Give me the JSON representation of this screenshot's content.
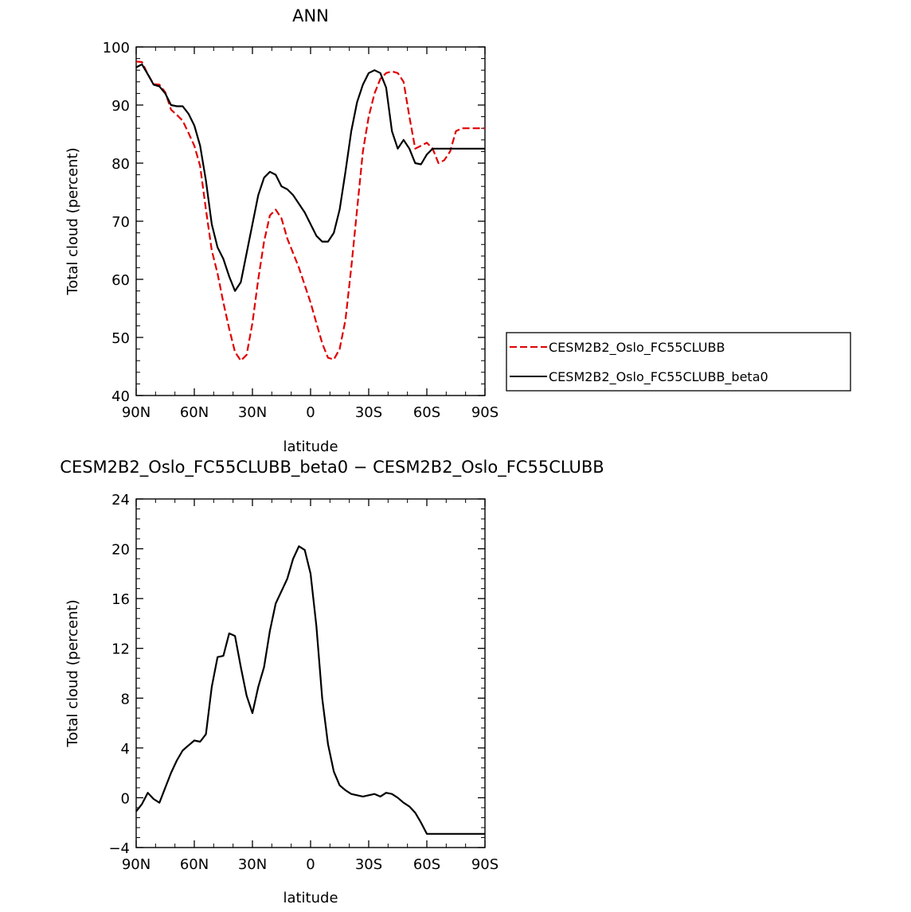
{
  "chart_data": [
    {
      "type": "line",
      "title": "ANN",
      "xlabel": "latitude",
      "ylabel": "Total cloud (percent)",
      "xlim": [
        90,
        -90
      ],
      "ylim": [
        40,
        100
      ],
      "x_ticks": [
        90,
        60,
        30,
        0,
        -30,
        -60,
        -90
      ],
      "x_tick_labels": [
        "90N",
        "60N",
        "30N",
        "0",
        "30S",
        "60S",
        "90S"
      ],
      "y_ticks": [
        40,
        50,
        60,
        70,
        80,
        90,
        100
      ],
      "y_tick_labels": [
        "40",
        "50",
        "60",
        "70",
        "80",
        "90",
        "100"
      ],
      "legend_position": "right",
      "series": [
        {
          "name": "CESM2B2_Oslo_FC55CLUBB",
          "color": "#e00000",
          "dash": "dashed",
          "x": [
            90,
            87,
            84,
            81,
            78,
            75,
            72,
            69,
            66,
            63,
            60,
            57,
            54,
            51,
            48,
            45,
            42,
            39,
            36,
            33,
            30,
            27,
            24,
            21,
            18,
            15,
            12,
            9,
            6,
            3,
            0,
            -3,
            -6,
            -9,
            -12,
            -15,
            -18,
            -21,
            -24,
            -27,
            -30,
            -33,
            -36,
            -39,
            -42,
            -45,
            -48,
            -51,
            -54,
            -57,
            -60,
            -63,
            -66,
            -69,
            -72,
            -75,
            -78,
            -81,
            -84,
            -87,
            -90
          ],
          "y": [
            97.5,
            97.4,
            95.3,
            93.6,
            93.5,
            92.2,
            89.2,
            88.3,
            87.3,
            85.2,
            83.0,
            79.5,
            72.0,
            65.0,
            61.0,
            56.0,
            51.5,
            47.5,
            46.0,
            47.0,
            52.5,
            60.0,
            66.5,
            71.0,
            72.0,
            70.5,
            67.0,
            64.5,
            62.0,
            59.0,
            56.0,
            52.5,
            49.0,
            46.5,
            46.2,
            48.0,
            53.0,
            62.0,
            72.0,
            82.0,
            88.0,
            92.0,
            94.5,
            95.5,
            95.8,
            95.5,
            94.0,
            88.0,
            82.5,
            83.0,
            83.5,
            82.5,
            80.0,
            80.5,
            82.0,
            85.5,
            86.0,
            86.0,
            86.0,
            86.0,
            86.0
          ]
        },
        {
          "name": "CESM2B2_Oslo_FC55CLUBB_beta0",
          "color": "#000000",
          "dash": "solid",
          "x": [
            90,
            87,
            84,
            81,
            78,
            75,
            72,
            69,
            66,
            63,
            60,
            57,
            54,
            51,
            48,
            45,
            42,
            39,
            36,
            33,
            30,
            27,
            24,
            21,
            18,
            15,
            12,
            9,
            6,
            3,
            0,
            -3,
            -6,
            -9,
            -12,
            -15,
            -18,
            -21,
            -24,
            -27,
            -30,
            -33,
            -36,
            -39,
            -42,
            -45,
            -48,
            -51,
            -54,
            -57,
            -60,
            -63,
            -66,
            -69,
            -72,
            -75,
            -78,
            -81,
            -84,
            -87,
            -90
          ],
          "y": [
            96.5,
            97.0,
            95.3,
            93.5,
            93.2,
            92.0,
            90.0,
            89.8,
            89.8,
            88.5,
            86.5,
            83.0,
            77.0,
            69.5,
            65.5,
            63.5,
            60.5,
            58.0,
            59.5,
            64.5,
            69.5,
            74.5,
            77.5,
            78.5,
            78.0,
            76.0,
            75.5,
            74.5,
            73.0,
            71.5,
            69.5,
            67.5,
            66.5,
            66.5,
            68.0,
            72.0,
            78.5,
            85.5,
            90.5,
            93.5,
            95.5,
            96.0,
            95.5,
            93.0,
            85.5,
            82.5,
            84.0,
            82.5,
            80.0,
            79.8,
            81.5,
            82.5,
            82.5,
            82.5,
            82.5,
            82.5,
            82.5,
            82.5,
            82.5,
            82.5,
            82.5
          ]
        }
      ]
    },
    {
      "type": "line",
      "title": "CESM2B2_Oslo_FC55CLUBB_beta0 − CESM2B2_Oslo_FC55CLUBB",
      "xlabel": "latitude",
      "ylabel": "Total cloud (percent)",
      "xlim": [
        90,
        -90
      ],
      "ylim": [
        -4,
        24
      ],
      "x_ticks": [
        90,
        60,
        30,
        0,
        -30,
        -60,
        -90
      ],
      "x_tick_labels": [
        "90N",
        "60N",
        "30N",
        "0",
        "30S",
        "60S",
        "90S"
      ],
      "y_ticks": [
        -4,
        0,
        4,
        8,
        12,
        16,
        20,
        24
      ],
      "y_tick_labels": [
        "−4",
        "0",
        "4",
        "8",
        "12",
        "16",
        "20",
        "24"
      ],
      "series": [
        {
          "color": "#000000",
          "dash": "solid",
          "x": [
            90,
            87,
            84,
            81,
            78,
            75,
            72,
            69,
            66,
            63,
            60,
            57,
            54,
            51,
            48,
            45,
            42,
            39,
            36,
            33,
            30,
            27,
            24,
            21,
            18,
            15,
            12,
            9,
            6,
            3,
            0,
            -3,
            -6,
            -9,
            -12,
            -15,
            -18,
            -21,
            -24,
            -27,
            -30,
            -33,
            -36,
            -39,
            -42,
            -45,
            -48,
            -51,
            -54,
            -57,
            -60,
            -63,
            -66,
            -69,
            -72,
            -75,
            -78,
            -81,
            -84,
            -87,
            -90
          ],
          "y": [
            -1.1,
            -0.5,
            0.4,
            -0.1,
            -0.4,
            0.8,
            2.0,
            3.0,
            3.8,
            4.2,
            4.6,
            4.5,
            5.1,
            8.9,
            11.3,
            11.4,
            13.2,
            13.0,
            10.5,
            8.2,
            6.8,
            8.9,
            10.5,
            13.4,
            15.6,
            16.6,
            17.6,
            19.2,
            20.2,
            19.9,
            18.0,
            13.8,
            8.0,
            4.3,
            2.1,
            1.0,
            0.6,
            0.3,
            0.2,
            0.1,
            0.2,
            0.3,
            0.1,
            0.4,
            0.3,
            0.0,
            -0.4,
            -0.7,
            -1.2,
            -2.0,
            -2.9,
            -2.9,
            -2.9,
            -2.9,
            -2.9,
            -2.9,
            -2.9,
            -2.9,
            -2.9,
            -2.9,
            -2.9
          ]
        }
      ]
    }
  ]
}
